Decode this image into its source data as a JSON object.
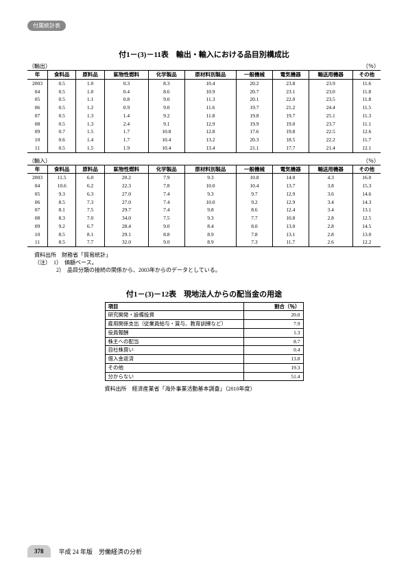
{
  "badge": "付属統計表",
  "table11": {
    "title": "付1－(3)－11表　輸出・輸入における品目別構成比",
    "export_label": "（輸出）",
    "import_label": "（輸入）",
    "unit": "（％）",
    "columns": [
      "年",
      "食料品",
      "原料品",
      "鉱物性燃料",
      "化学製品",
      "原材料別製品",
      "一般機械",
      "電気機器",
      "輸送用機器",
      "その他"
    ],
    "export_rows": [
      [
        "2003",
        "0.5",
        "1.0",
        "0.3",
        "8.3",
        "10.4",
        "20.2",
        "23.8",
        "23.9",
        "11.6"
      ],
      [
        "04",
        "0.5",
        "1.0",
        "0.4",
        "8.6",
        "10.9",
        "20.7",
        "23.1",
        "23.0",
        "11.8"
      ],
      [
        "05",
        "0.5",
        "1.1",
        "0.8",
        "9.0",
        "11.3",
        "20.1",
        "22.0",
        "23.5",
        "11.8"
      ],
      [
        "06",
        "0.5",
        "1.2",
        "0.9",
        "9.0",
        "11.6",
        "19.7",
        "21.2",
        "24.4",
        "11.5"
      ],
      [
        "07",
        "0.5",
        "1.3",
        "1.4",
        "9.2",
        "11.8",
        "19.8",
        "19.7",
        "25.1",
        "11.3"
      ],
      [
        "08",
        "0.5",
        "1.3",
        "2.4",
        "9.1",
        "12.9",
        "19.9",
        "19.0",
        "23.7",
        "11.1"
      ],
      [
        "09",
        "0.7",
        "1.5",
        "1.7",
        "10.8",
        "12.8",
        "17.6",
        "19.8",
        "22.5",
        "12.6"
      ],
      [
        "10",
        "0.6",
        "1.4",
        "1.7",
        "10.4",
        "13.2",
        "20.3",
        "18.5",
        "22.2",
        "11.7"
      ],
      [
        "11",
        "0.5",
        "1.5",
        "1.9",
        "10.4",
        "13.4",
        "21.1",
        "17.7",
        "21.4",
        "12.1"
      ]
    ],
    "import_rows": [
      [
        "2003",
        "11.5",
        "6.0",
        "20.2",
        "7.9",
        "9.3",
        "10.8",
        "14.0",
        "4.3",
        "16.0"
      ],
      [
        "04",
        "10.6",
        "6.2",
        "22.3",
        "7.8",
        "10.0",
        "10.4",
        "13.7",
        "3.8",
        "15.3"
      ],
      [
        "05",
        "9.3",
        "6.3",
        "27.0",
        "7.4",
        "9.3",
        "9.7",
        "12.9",
        "3.6",
        "14.6"
      ],
      [
        "06",
        "8.5",
        "7.3",
        "27.0",
        "7.4",
        "10.0",
        "9.2",
        "12.9",
        "3.4",
        "14.3"
      ],
      [
        "07",
        "8.1",
        "7.5",
        "29.7",
        "7.4",
        "9.8",
        "8.6",
        "12.4",
        "3.4",
        "13.1"
      ],
      [
        "08",
        "8.3",
        "7.0",
        "34.0",
        "7.5",
        "9.3",
        "7.7",
        "10.8",
        "2.8",
        "12.5"
      ],
      [
        "09",
        "9.2",
        "6.7",
        "28.4",
        "9.0",
        "8.4",
        "8.0",
        "13.0",
        "2.8",
        "14.5"
      ],
      [
        "10",
        "8.5",
        "8.1",
        "29.1",
        "8.8",
        "8.9",
        "7.8",
        "13.1",
        "2.8",
        "13.0"
      ],
      [
        "11",
        "8.5",
        "7.7",
        "32.0",
        "9.0",
        "8.9",
        "7.3",
        "11.7",
        "2.6",
        "12.2"
      ]
    ],
    "source1": "資料出所　財務省「貿易統計」",
    "note1": "（注）　1）　価額ベース。",
    "note2": "　　　　2）　品目分類の接続の関係から、2003年からのデータとしている。"
  },
  "table12": {
    "title": "付1－(3)－12表　現地法人からの配当金の用途",
    "col1": "項目",
    "col2": "割合（％）",
    "rows": [
      [
        "研究開発・設備投資",
        "20.0"
      ],
      [
        "雇用関係支出（従業員給与・賞与、教育訓練など）",
        "7.9"
      ],
      [
        "役員報酬",
        "1.3"
      ],
      [
        "株主への配当",
        "8.7"
      ],
      [
        "自社株買い",
        "0.4"
      ],
      [
        "借入金返済",
        "13.8"
      ],
      [
        "その他",
        "19.3"
      ],
      [
        "分からない",
        "51.4"
      ]
    ],
    "source": "資料出所　経済産業省「海外事業活動基本調査」（2010年度）"
  },
  "footer": {
    "page": "378",
    "text": "平成 24 年版　労働経済の分析"
  }
}
